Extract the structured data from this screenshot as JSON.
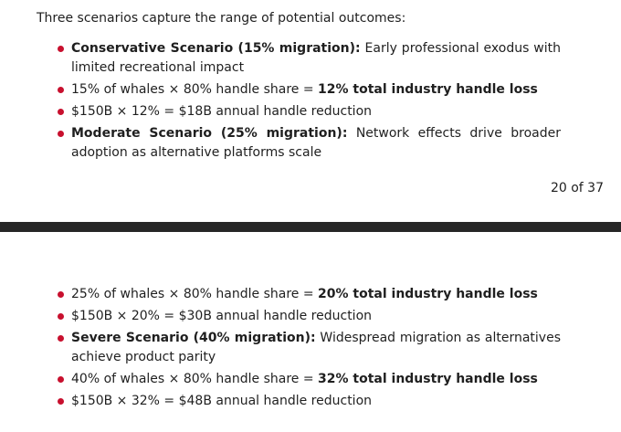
{
  "intro": "Three scenarios capture the range of potential outcomes:",
  "page_top_items": [
    {
      "bold": "Conservative Scenario (15% migration):",
      "text": " Early professional exodus with limited recreational impact"
    },
    {
      "pre": "15% of whales × 80% handle share = ",
      "bold": "12% total industry handle loss"
    },
    {
      "text": "$150B × 12% = $18B annual handle reduction"
    },
    {
      "bold": "Moderate Scenario (25% migration):",
      "text": " Network effects drive broader adoption as alternative platforms scale"
    }
  ],
  "page_number": "20 of 37",
  "page_bottom_items": [
    {
      "pre": "25% of whales × 80% handle share = ",
      "bold": "20% total industry handle loss"
    },
    {
      "text": "$150B × 20% = $30B annual handle reduction"
    },
    {
      "bold": "Severe Scenario (40% migration):",
      "text": " Widespread migration as alternatives achieve product parity"
    },
    {
      "pre": "40% of whales × 80% handle share = ",
      "bold": "32% total industry handle loss"
    },
    {
      "text": "$150B × 32% = $48B annual handle reduction"
    }
  ]
}
